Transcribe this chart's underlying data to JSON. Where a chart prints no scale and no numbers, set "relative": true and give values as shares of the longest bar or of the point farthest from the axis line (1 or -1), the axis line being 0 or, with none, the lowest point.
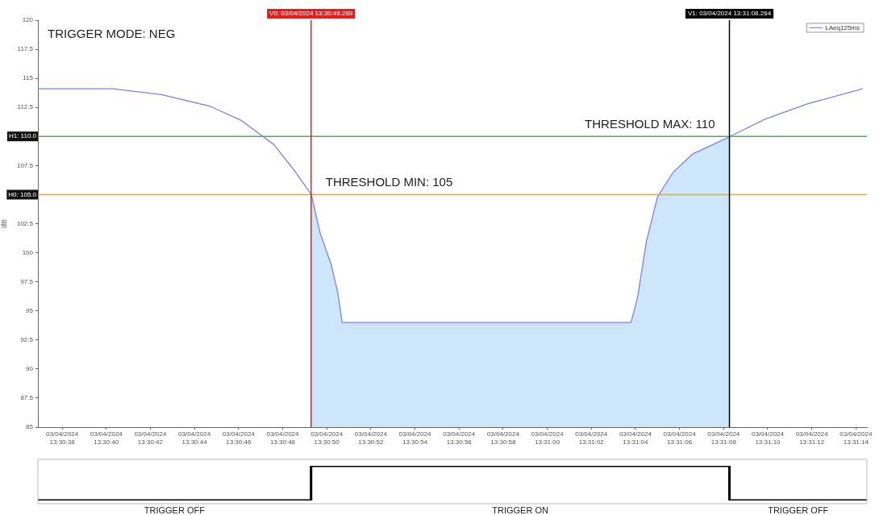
{
  "chart_data": [
    {
      "type": "line",
      "ylabel": "dB",
      "xlim": [
        "2024-04-03T13:30:36.9",
        "2024-04-03T13:31:14.5"
      ],
      "ylim": [
        85,
        120
      ],
      "xticks": [
        {
          "value": "2024-04-03T13:30:38",
          "label": "03/04/2024 13:30:38"
        },
        {
          "value": "2024-04-03T13:30:40",
          "label": "03/04/2024 13:30:40"
        },
        {
          "value": "2024-04-03T13:30:42",
          "label": "03/04/2024 13:30:42"
        },
        {
          "value": "2024-04-03T13:30:44",
          "label": "03/04/2024 13:30:44"
        },
        {
          "value": "2024-04-03T13:30:46",
          "label": "03/04/2024 13:30:46"
        },
        {
          "value": "2024-04-03T13:30:48",
          "label": "03/04/2024 13:30:48"
        },
        {
          "value": "2024-04-03T13:30:50",
          "label": "03/04/2024 13:30:50"
        },
        {
          "value": "2024-04-03T13:30:52",
          "label": "03/04/2024 13:30:52"
        },
        {
          "value": "2024-04-03T13:30:54",
          "label": "03/04/2024 13:30:54"
        },
        {
          "value": "2024-04-03T13:30:56",
          "label": "03/04/2024 13:30:56"
        },
        {
          "value": "2024-04-03T13:30:58",
          "label": "03/04/2024 13:30:58"
        },
        {
          "value": "2024-04-03T13:31:00",
          "label": "03/04/2024 13:31:00"
        },
        {
          "value": "2024-04-03T13:31:02",
          "label": "03/04/2024 13:31:02"
        },
        {
          "value": "2024-04-03T13:31:04",
          "label": "03/04/2024 13:31:04"
        },
        {
          "value": "2024-04-03T13:31:06",
          "label": "03/04/2024 13:31:06"
        },
        {
          "value": "2024-04-03T13:31:08",
          "label": "03/04/2024 13:31:08"
        },
        {
          "value": "2024-04-03T13:31:10",
          "label": "03/04/2024 13:31:10"
        },
        {
          "value": "2024-04-03T13:31:12",
          "label": "03/04/2024 13:31:12"
        },
        {
          "value": "2024-04-03T13:31:14",
          "label": "03/04/2024 13:31:14"
        }
      ],
      "yticks": [
        85,
        87.5,
        90,
        92.5,
        95,
        97.5,
        100,
        102.5,
        {
          "value": 105,
          "label": null
        },
        107.5,
        {
          "value": 110,
          "label": null
        },
        112.5,
        115,
        117.5,
        120
      ],
      "series": [
        {
          "name": "LAeq125ms",
          "type": "line",
          "color": "#8080e0",
          "x": [
            "2024-04-03T13:30:36.9",
            "2024-04-03T13:30:40.3",
            "2024-04-03T13:30:42.5",
            "2024-04-03T13:30:44.7",
            "2024-04-03T13:30:46.1",
            "2024-04-03T13:30:47.6",
            "2024-04-03T13:30:48.6",
            "2024-04-03T13:30:49.3",
            "2024-04-03T13:30:49.7",
            "2024-04-03T13:30:50.2",
            "2024-04-03T13:30:50.5",
            "2024-04-03T13:30:50.7",
            "2024-04-03T13:31:03.8",
            "2024-04-03T13:31:04.1",
            "2024-04-03T13:31:04.5",
            "2024-04-03T13:31:05.0",
            "2024-04-03T13:31:05.7",
            "2024-04-03T13:31:06.6",
            "2024-04-03T13:31:08.3",
            "2024-04-03T13:31:09.9",
            "2024-04-03T13:31:11.8",
            "2024-04-03T13:31:14.3"
          ],
          "values": [
            114.1,
            114.1,
            113.6,
            112.6,
            111.4,
            109.3,
            106.9,
            105,
            101.7,
            99,
            96.6,
            94,
            94,
            96.2,
            101,
            104.8,
            106.9,
            108.5,
            110,
            111.5,
            112.8,
            114.1
          ]
        },
        {
          "type": "area",
          "color": "#cde6fa",
          "x": [
            "2024-04-03T13:30:49.3",
            "2024-04-03T13:30:49.7",
            "2024-04-03T13:30:50.2",
            "2024-04-03T13:30:50.5",
            "2024-04-03T13:30:50.7",
            "2024-04-03T13:31:03.8",
            "2024-04-03T13:31:04.1",
            "2024-04-03T13:31:04.5",
            "2024-04-03T13:31:05.0",
            "2024-04-03T13:31:05.7",
            "2024-04-03T13:31:06.6",
            "2024-04-03T13:31:08.3"
          ],
          "values": [
            105,
            101.7,
            99,
            96.6,
            94,
            94,
            96.2,
            101,
            104.8,
            106.9,
            108.5,
            110
          ]
        }
      ],
      "ref_lines": [
        {
          "axis": "y",
          "value": 110,
          "label": "H1: 110.0",
          "color": "#4caf50"
        },
        {
          "axis": "y",
          "value": 105,
          "label": "H0: 105.0",
          "color": "#ffa500"
        },
        {
          "axis": "x",
          "value": "2024-04-03T13:30:49.289",
          "label": "V0: 03/04/2024 13:30:49.289",
          "color": "#e02020"
        },
        {
          "axis": "x",
          "value": "2024-04-03T13:31:08.264",
          "label": "V1: 03/04/2024 13:31:08.264",
          "color": "#000000"
        }
      ],
      "annotations": [
        "TRIGGER MODE: NEG",
        {
          "text": "THRESHOLD MAX: 110",
          "x": "2024-04-03T13:31:08.264",
          "y": 110
        },
        {
          "text": "THRESHOLD MIN: 105",
          "x": "2024-04-03T13:30:49.289",
          "y": 105
        }
      ],
      "legend": "top right",
      "marker": "none",
      "grid": false
    },
    {
      "type": "step",
      "relative": true,
      "xlim": [
        "2024-04-03T13:30:36.9",
        "2024-04-03T13:31:14.5"
      ],
      "tick_labels": false,
      "series": [
        {
          "color": "#000000",
          "x": [
            "2024-04-03T13:30:36.9",
            "2024-04-03T13:30:49.289",
            "2024-04-03T13:31:08.264",
            "2024-04-03T13:31:14.5"
          ],
          "values": [
            0,
            1,
            0,
            0
          ]
        }
      ],
      "annotations": [
        "TRIGGER OFF",
        "TRIGGER ON",
        "TRIGGER OFF"
      ]
    }
  ]
}
